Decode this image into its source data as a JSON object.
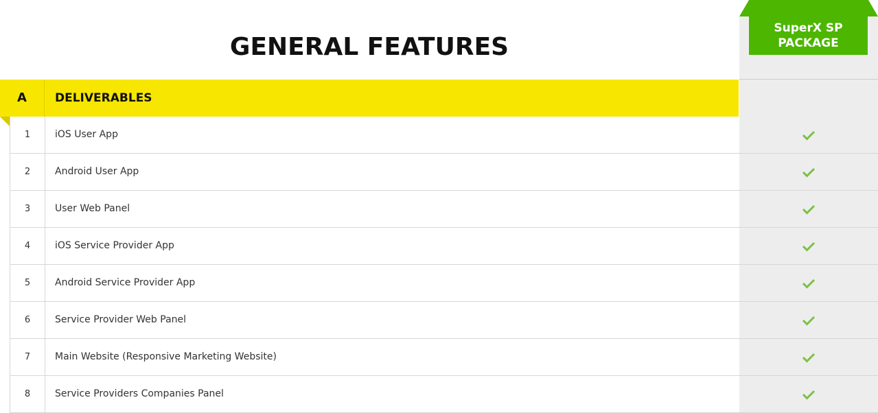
{
  "title": "GENERAL FEATURES",
  "package": {
    "label": "SuperX SP PACKAGE",
    "color": "#4cb600"
  },
  "section": {
    "letter": "A",
    "title": "DELIVERABLES",
    "color": "#f7e600"
  },
  "check_color": "#7cc043",
  "rows": [
    {
      "num": "1",
      "label": "iOS User App",
      "included": true
    },
    {
      "num": "2",
      "label": "Android User App",
      "included": true
    },
    {
      "num": "3",
      "label": "User Web Panel",
      "included": true
    },
    {
      "num": "4",
      "label": "iOS Service Provider App",
      "included": true
    },
    {
      "num": "5",
      "label": "Android Service Provider App",
      "included": true
    },
    {
      "num": "6",
      "label": "Service Provider Web Panel",
      "included": true
    },
    {
      "num": "7",
      "label": "Main Website (Responsive Marketing Website)",
      "included": true
    },
    {
      "num": "8",
      "label": "Service Providers Companies Panel",
      "included": true
    }
  ]
}
